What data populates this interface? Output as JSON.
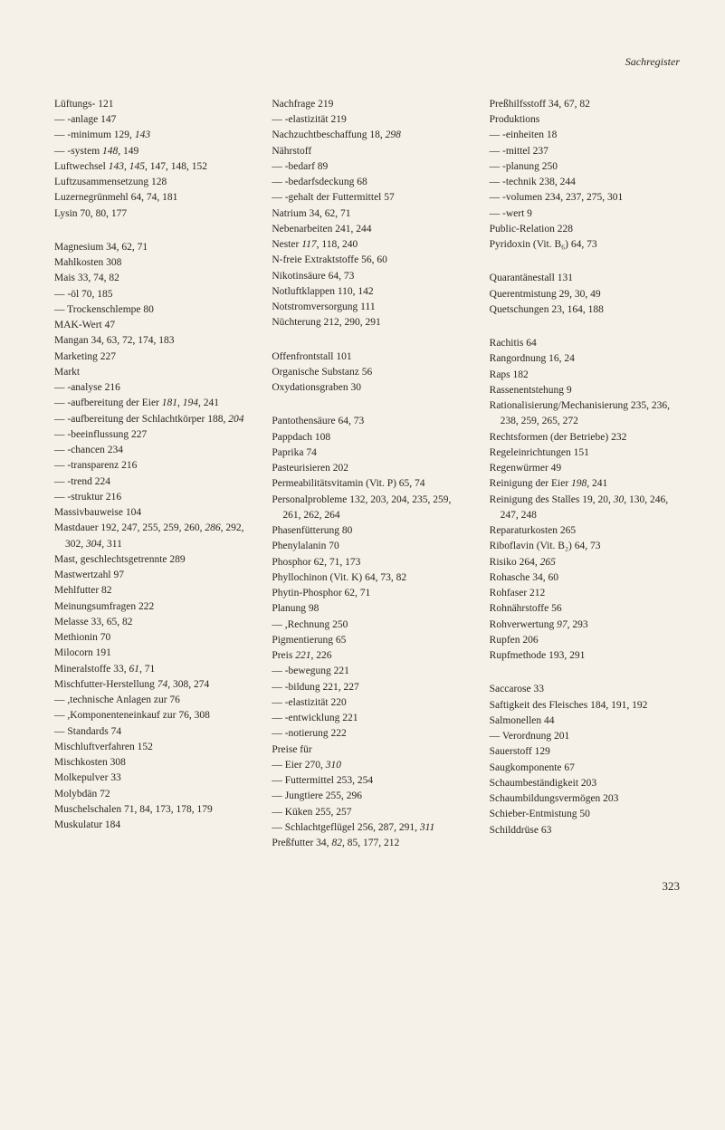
{
  "header": "Sachregister",
  "pageNumber": "323",
  "columns": [
    {
      "entries": [
        {
          "text": "Lüftungs-   121"
        },
        {
          "text": "— -anlage   147"
        },
        {
          "text": "— -minimum   129, 143",
          "italic": [
            "143"
          ]
        },
        {
          "text": "— -system   148, 149",
          "italic": [
            "148"
          ]
        },
        {
          "text": "Luftwechsel   143, 145, 147, 148, 152",
          "italic": [
            "143",
            "145"
          ]
        },
        {
          "text": "Luftzusammensetzung   128"
        },
        {
          "text": "Luzernegrünmehl   64, 74, 181"
        },
        {
          "text": "Lysin   70, 80, 177"
        },
        {
          "spacer": true
        },
        {
          "text": "Magnesium   34, 62, 71"
        },
        {
          "text": "Mahlkosten   308"
        },
        {
          "text": "Mais   33, 74, 82"
        },
        {
          "text": "— -öl   70, 185"
        },
        {
          "text": "— Trockenschlempe   80"
        },
        {
          "text": "MAK-Wert   47"
        },
        {
          "text": "Mangan   34, 63, 72, 174, 183"
        },
        {
          "text": "Marketing   227"
        },
        {
          "text": "Markt"
        },
        {
          "text": "— -analyse   216"
        },
        {
          "text": "— -aufbereitung der Eier   181, 194, 241",
          "italic": [
            "181",
            "194"
          ]
        },
        {
          "text": "— -aufbereitung der Schlachtkörper   188, 204",
          "italic": [
            "204"
          ]
        },
        {
          "text": "— -beeinflussung   227"
        },
        {
          "text": "— -chancen   234"
        },
        {
          "text": "— -transparenz   216"
        },
        {
          "text": "— -trend   224"
        },
        {
          "text": "— -struktur   216"
        },
        {
          "text": "Massivbauweise   104"
        },
        {
          "text": "Mastdauer   192, 247, 255, 259, 260, 286, 292, 302, 304, 311",
          "italic": [
            "286",
            "304"
          ]
        },
        {
          "text": "Mast, geschlechtsgetrennte   289"
        },
        {
          "text": "Mastwertzahl   97"
        },
        {
          "text": "Mehlfutter   82"
        },
        {
          "text": "Meinungsumfragen   222"
        },
        {
          "text": "Melasse   33, 65, 82"
        },
        {
          "text": "Methionin   70"
        },
        {
          "text": "Milocorn   191"
        },
        {
          "text": "Mineralstoffe   33, 61, 71",
          "italic": [
            "61"
          ]
        },
        {
          "text": "Mischfutter-Herstellung   74, 308, 274",
          "italic": [
            "74"
          ]
        },
        {
          "text": "— ,technische Anlagen zur 76"
        },
        {
          "text": "— ,Komponenteneinkauf zur   76, 308"
        },
        {
          "text": "— Standards   74"
        },
        {
          "text": "Mischluftverfahren   152"
        },
        {
          "text": "Mischkosten   308"
        },
        {
          "text": "Molkepulver   33"
        },
        {
          "text": "Molybdän   72"
        },
        {
          "text": "Muschelschalen   71, 84, 173, 178, 179"
        },
        {
          "text": "Muskulatur   184"
        }
      ]
    },
    {
      "entries": [
        {
          "text": "Nachfrage   219"
        },
        {
          "text": "— -elastizität   219"
        },
        {
          "text": "Nachzuchtbeschaffung   18, 298",
          "italic": [
            "298"
          ]
        },
        {
          "text": "Nährstoff"
        },
        {
          "text": "— -bedarf   89"
        },
        {
          "text": "— -bedarfsdeckung   68"
        },
        {
          "text": "— -gehalt der Futtermittel 57"
        },
        {
          "text": "Natrium   34, 62, 71"
        },
        {
          "text": "Nebenarbeiten   241, 244"
        },
        {
          "text": "Nester   117, 118, 240",
          "italic": [
            "117"
          ]
        },
        {
          "text": "N-freie Extraktstoffe   56, 60"
        },
        {
          "text": "Nikotinsäure   64, 73"
        },
        {
          "text": "Notluftklappen   110, 142"
        },
        {
          "text": "Notstromversorgung   111"
        },
        {
          "text": "Nüchterung   212, 290, 291"
        },
        {
          "spacer": true
        },
        {
          "text": "Offenfrontstall   101"
        },
        {
          "text": "Organische Substanz   56"
        },
        {
          "text": "Oxydationsgraben   30"
        },
        {
          "spacer": true
        },
        {
          "text": "Pantothensäure   64, 73"
        },
        {
          "text": "Pappdach   108"
        },
        {
          "text": "Paprika   74"
        },
        {
          "text": "Pasteurisieren   202"
        },
        {
          "text": "Permeabilitätsvitamin (Vit. P)   65, 74"
        },
        {
          "text": "Personalprobleme   132, 203, 204, 235, 259, 261, 262, 264"
        },
        {
          "text": "Phasenfütterung   80"
        },
        {
          "text": "Phenylalanin   70"
        },
        {
          "text": "Phosphor   62, 71, 173"
        },
        {
          "text": "Phyllochinon (Vit. K)   64, 73, 82"
        },
        {
          "text": "Phytin-Phosphor   62, 71"
        },
        {
          "text": "Planung   98"
        },
        {
          "text": "— ,Rechnung   250"
        },
        {
          "text": "Pigmentierung   65"
        },
        {
          "text": "Preis   221, 226",
          "italic": [
            "221"
          ]
        },
        {
          "text": "— -bewegung   221"
        },
        {
          "text": "— -bildung   221, 227"
        },
        {
          "text": "— -elastizität   220"
        },
        {
          "text": "— -entwicklung   221"
        },
        {
          "text": "— -notierung   222"
        },
        {
          "text": "Preise für"
        },
        {
          "text": "— Eier   270, 310",
          "italic": [
            "310"
          ]
        },
        {
          "text": "— Futtermittel   253, 254"
        },
        {
          "text": "— Jungtiere   255, 296"
        },
        {
          "text": "— Küken   255, 257"
        },
        {
          "text": "— Schlachtgeflügel   256, 287, 291, 311",
          "italic": [
            "311"
          ]
        },
        {
          "text": "Preßfutter   34, 82, 85, 177, 212",
          "italic": [
            "82"
          ]
        }
      ]
    },
    {
      "entries": [
        {
          "text": "Preßhilfsstoff   34, 67, 82"
        },
        {
          "text": "Produktions"
        },
        {
          "text": "— -einheiten   18"
        },
        {
          "text": "— -mittel   237"
        },
        {
          "text": "— -planung   250"
        },
        {
          "text": "— -technik   238, 244"
        },
        {
          "text": "— -volumen   234, 237, 275, 301"
        },
        {
          "text": "— -wert   9"
        },
        {
          "text": "Public-Relation   228"
        },
        {
          "text": "Pyridoxin (Vit. B₆)   64, 73"
        },
        {
          "spacer": true
        },
        {
          "text": "Quarantänestall   131"
        },
        {
          "text": "Querentmistung   29, 30, 49"
        },
        {
          "text": "Quetschungen   23, 164, 188"
        },
        {
          "spacer": true
        },
        {
          "text": "Rachitis   64"
        },
        {
          "text": "Rangordnung   16, 24"
        },
        {
          "text": "Raps   182"
        },
        {
          "text": "Rassenentstehung   9"
        },
        {
          "text": "Rationalisierung/Mechanisierung   235, 236, 238, 259, 265, 272"
        },
        {
          "text": "Rechtsformen (der Betriebe)   232"
        },
        {
          "text": "Regeleinrichtungen   151"
        },
        {
          "text": "Regenwürmer   49"
        },
        {
          "text": "Reinigung der Eier   198, 241",
          "italic": [
            "198"
          ]
        },
        {
          "text": "Reinigung des Stalles   19, 20, 30, 130, 246, 247, 248",
          "italic": [
            "30"
          ]
        },
        {
          "text": "Reparaturkosten   265"
        },
        {
          "text": "Riboflavin (Vit. B₂)   64, 73"
        },
        {
          "text": "Risiko   264, 265",
          "italic": [
            "265"
          ]
        },
        {
          "text": "Rohasche   34, 60"
        },
        {
          "text": "Rohfaser   212"
        },
        {
          "text": "Rohnährstoffe   56"
        },
        {
          "text": "Rohverwertung   97, 293",
          "italic": [
            "97"
          ]
        },
        {
          "text": "Rupfen   206"
        },
        {
          "text": "Rupfmethode   193, 291"
        },
        {
          "spacer": true
        },
        {
          "text": "Saccarose   33"
        },
        {
          "text": "Saftigkeit des Fleisches   184, 191, 192"
        },
        {
          "text": "Salmonellen   44"
        },
        {
          "text": "— Verordnung   201"
        },
        {
          "text": "Sauerstoff   129"
        },
        {
          "text": "Saugkomponente   67"
        },
        {
          "text": "Schaumbeständigkeit   203"
        },
        {
          "text": "Schaumbildungsvermögen   203"
        },
        {
          "text": "Schieber-Entmistung   50"
        },
        {
          "text": "Schilddrüse   63"
        }
      ]
    }
  ]
}
